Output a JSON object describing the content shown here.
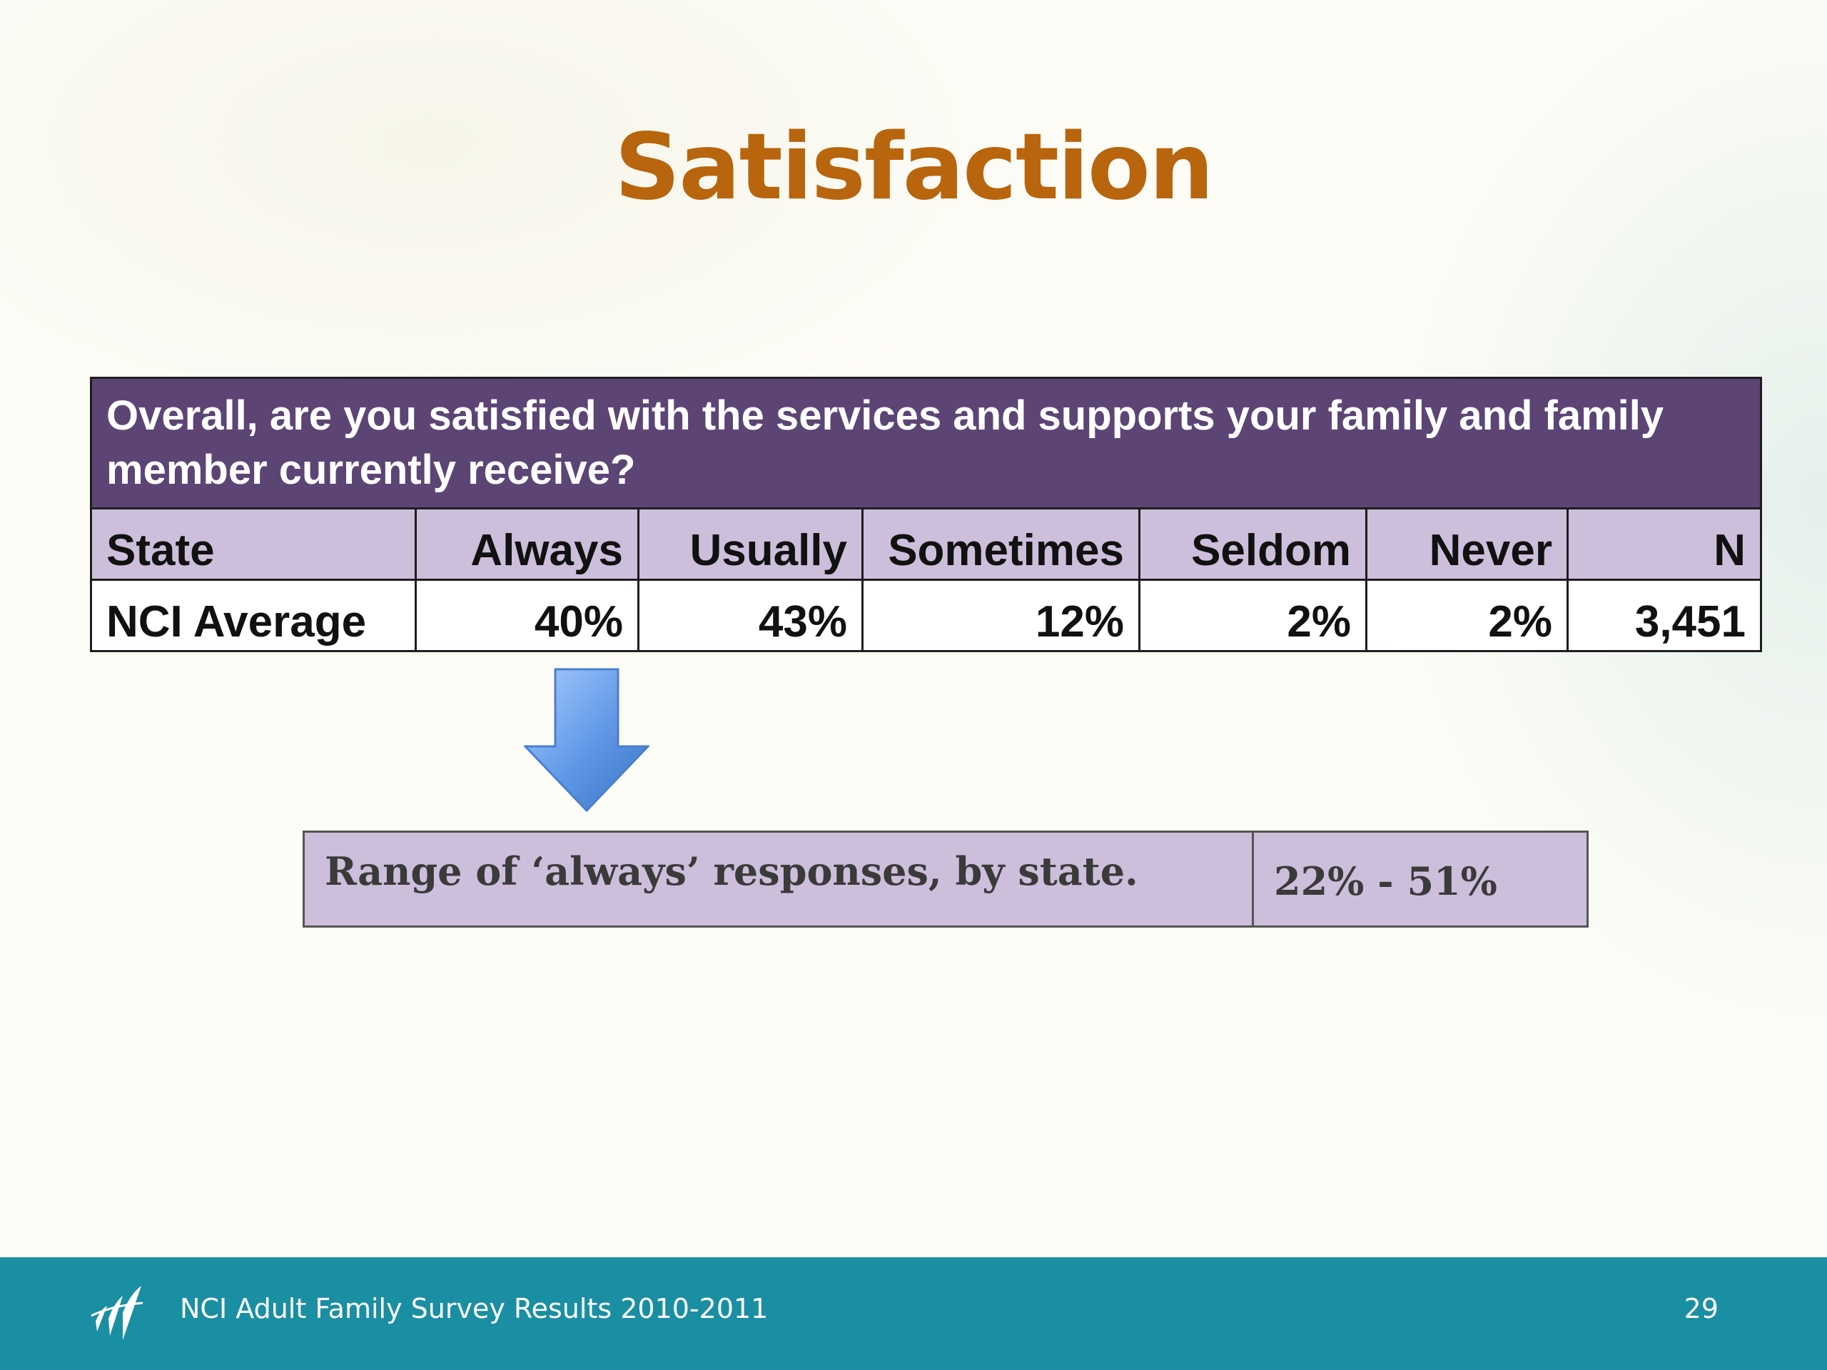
{
  "slide": {
    "title": "Satisfaction"
  },
  "table": {
    "question": "Overall, are you satisfied with the services and supports your family and family member currently receive?",
    "headers": [
      "State",
      "Always",
      "Usually",
      "Sometimes",
      "Seldom",
      "Never",
      "N"
    ],
    "rows": [
      {
        "state": "NCI Average",
        "always": "40%",
        "usually": "43%",
        "sometimes": "12%",
        "seldom": "2%",
        "never": "2%",
        "n": "3,451"
      }
    ],
    "header_color": "#5c4575",
    "subheader_color": "#cdbfdb"
  },
  "range": {
    "label": "Range of ‘always’ responses, by state.",
    "value": "22% - 51%"
  },
  "footer": {
    "text": "NCI Adult Family Survey Results 2010-2011",
    "page_number": "29",
    "color": "#1a8ea3"
  },
  "icons": {
    "arrow": "arrow-down-icon",
    "logo": "nci-logo-icon"
  },
  "title_color": "#b8650d"
}
